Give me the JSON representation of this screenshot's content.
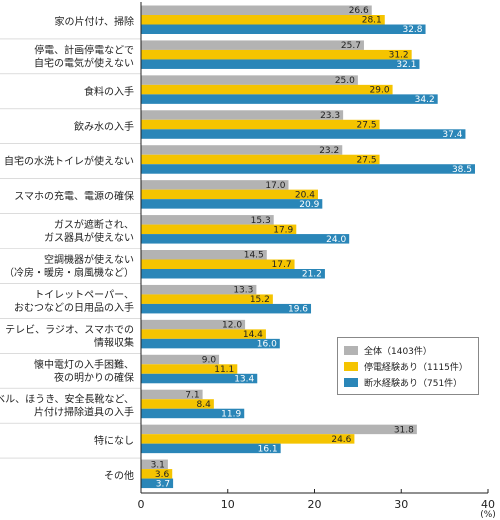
{
  "chart_data": {
    "type": "bar",
    "orientation": "horizontal",
    "categories": [
      [
        "家の片付け、掃除"
      ],
      [
        "停電、計画停電などで",
        "自宅の電気が使えない"
      ],
      [
        "食料の入手"
      ],
      [
        "飲み水の入手"
      ],
      [
        "自宅の水洗トイレが使えない"
      ],
      [
        "スマホの充電、電源の確保"
      ],
      [
        "ガスが遮断され、",
        "ガス器具が使えない"
      ],
      [
        "空調機器が使えない",
        "（冷房・暖房・扇風機など）"
      ],
      [
        "トイレットペーパー、",
        "おむつなどの日用品の入手"
      ],
      [
        "テレビ、ラジオ、スマホでの",
        "情報収集"
      ],
      [
        "懐中電灯の入手困難、",
        "夜の明かりの確保"
      ],
      [
        "シャベル、ほうき、安全長靴など、",
        "片付け掃除道具の入手"
      ],
      [
        "特になし"
      ],
      [
        "その他"
      ]
    ],
    "series": [
      {
        "name": "全体（1403件）",
        "color": "#b3b3b3",
        "values": [
          26.6,
          25.7,
          25.0,
          23.3,
          23.2,
          17.0,
          15.3,
          14.5,
          13.3,
          12.0,
          9.0,
          7.1,
          31.8,
          3.1
        ]
      },
      {
        "name": "停電経験あり（1115件）",
        "color": "#f5c400",
        "values": [
          28.1,
          31.2,
          29.0,
          27.5,
          27.5,
          20.4,
          17.9,
          17.7,
          15.2,
          14.4,
          11.1,
          8.4,
          24.6,
          3.6
        ]
      },
      {
        "name": "断水経験あり（751件）",
        "color": "#2a86b8",
        "values": [
          32.8,
          32.1,
          34.2,
          37.4,
          38.5,
          20.9,
          24.0,
          21.2,
          19.6,
          16.0,
          13.4,
          11.9,
          16.1,
          3.7
        ]
      }
    ],
    "value_labels": {
      "s0": [
        "26.6",
        "25.7",
        "25.0",
        "23.3",
        "23.2",
        "17.0",
        "15.3",
        "14.5",
        "13.3",
        "12.0",
        "9.0",
        "7.1",
        "31.8",
        "3.1"
      ],
      "s1": [
        "28.1",
        "31.2",
        "29.0",
        "27.5",
        "27.5",
        "20.4",
        "17.9",
        "17.7",
        "15.2",
        "14.4",
        "11.1",
        "8.4",
        "24.6",
        "3.6"
      ],
      "s2": [
        "32.8",
        "32.1",
        "34.2",
        "37.4",
        "38.5",
        "20.9",
        "24.0",
        "21.2",
        "19.6",
        "16.0",
        "13.4",
        "11.9",
        "16.1",
        "3.7"
      ]
    },
    "xlim": [
      0,
      40
    ],
    "xticks": [
      "0",
      "10",
      "20",
      "30",
      "40"
    ],
    "unit": "(%)",
    "legend_position": "lower-right",
    "grid": false
  },
  "legend": {
    "item0": "全体（1403件）",
    "item1": "停電経験あり（1115件）",
    "item2": "断水経験あり（751件）"
  }
}
